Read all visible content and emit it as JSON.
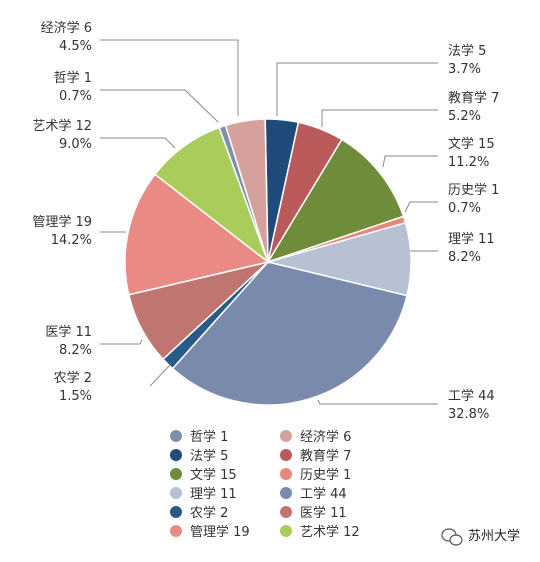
{
  "chart_data": {
    "type": "pie",
    "title": "",
    "categories": [
      "哲学",
      "经济学",
      "法学",
      "教育学",
      "文学",
      "历史学",
      "理学",
      "工学",
      "农学",
      "医学",
      "管理学",
      "艺术学"
    ],
    "values": [
      1,
      6,
      5,
      7,
      15,
      1,
      11,
      44,
      2,
      11,
      19,
      12
    ],
    "percent_labels": [
      "0.7%",
      "4.5%",
      "3.7%",
      "5.2%",
      "11.2%",
      "0.7%",
      "8.2%",
      "32.8%",
      "1.5%",
      "8.2%",
      "14.2%",
      "9.0%"
    ],
    "names": [
      "哲学 1",
      "经济学 6",
      "法学 5",
      "教育学 7",
      "文学 15",
      "历史学 1",
      "理学 11",
      "工学 44",
      "农学 2",
      "医学 11",
      "管理学 19",
      "艺术学 12"
    ],
    "colors": [
      "#7f8fae",
      "#d6a19c",
      "#1f4a7a",
      "#bb5a5a",
      "#6e8c3a",
      "#e6877d",
      "#b8c0d4",
      "#7a8aad",
      "#285a8a",
      "#c07570",
      "#e98a85",
      "#a9cc5a"
    ],
    "legend_order": [
      "哲学 1",
      "经济学 6",
      "法学 5",
      "教育学 7",
      "文学 15",
      "历史学 1",
      "理学 11",
      "工学 44",
      "农学 2",
      "医学 11",
      "管理学 19",
      "艺术学 12"
    ],
    "legend_position": "bottom"
  },
  "watermark": {
    "text": "苏州大学",
    "icon": "wechat-icon"
  }
}
